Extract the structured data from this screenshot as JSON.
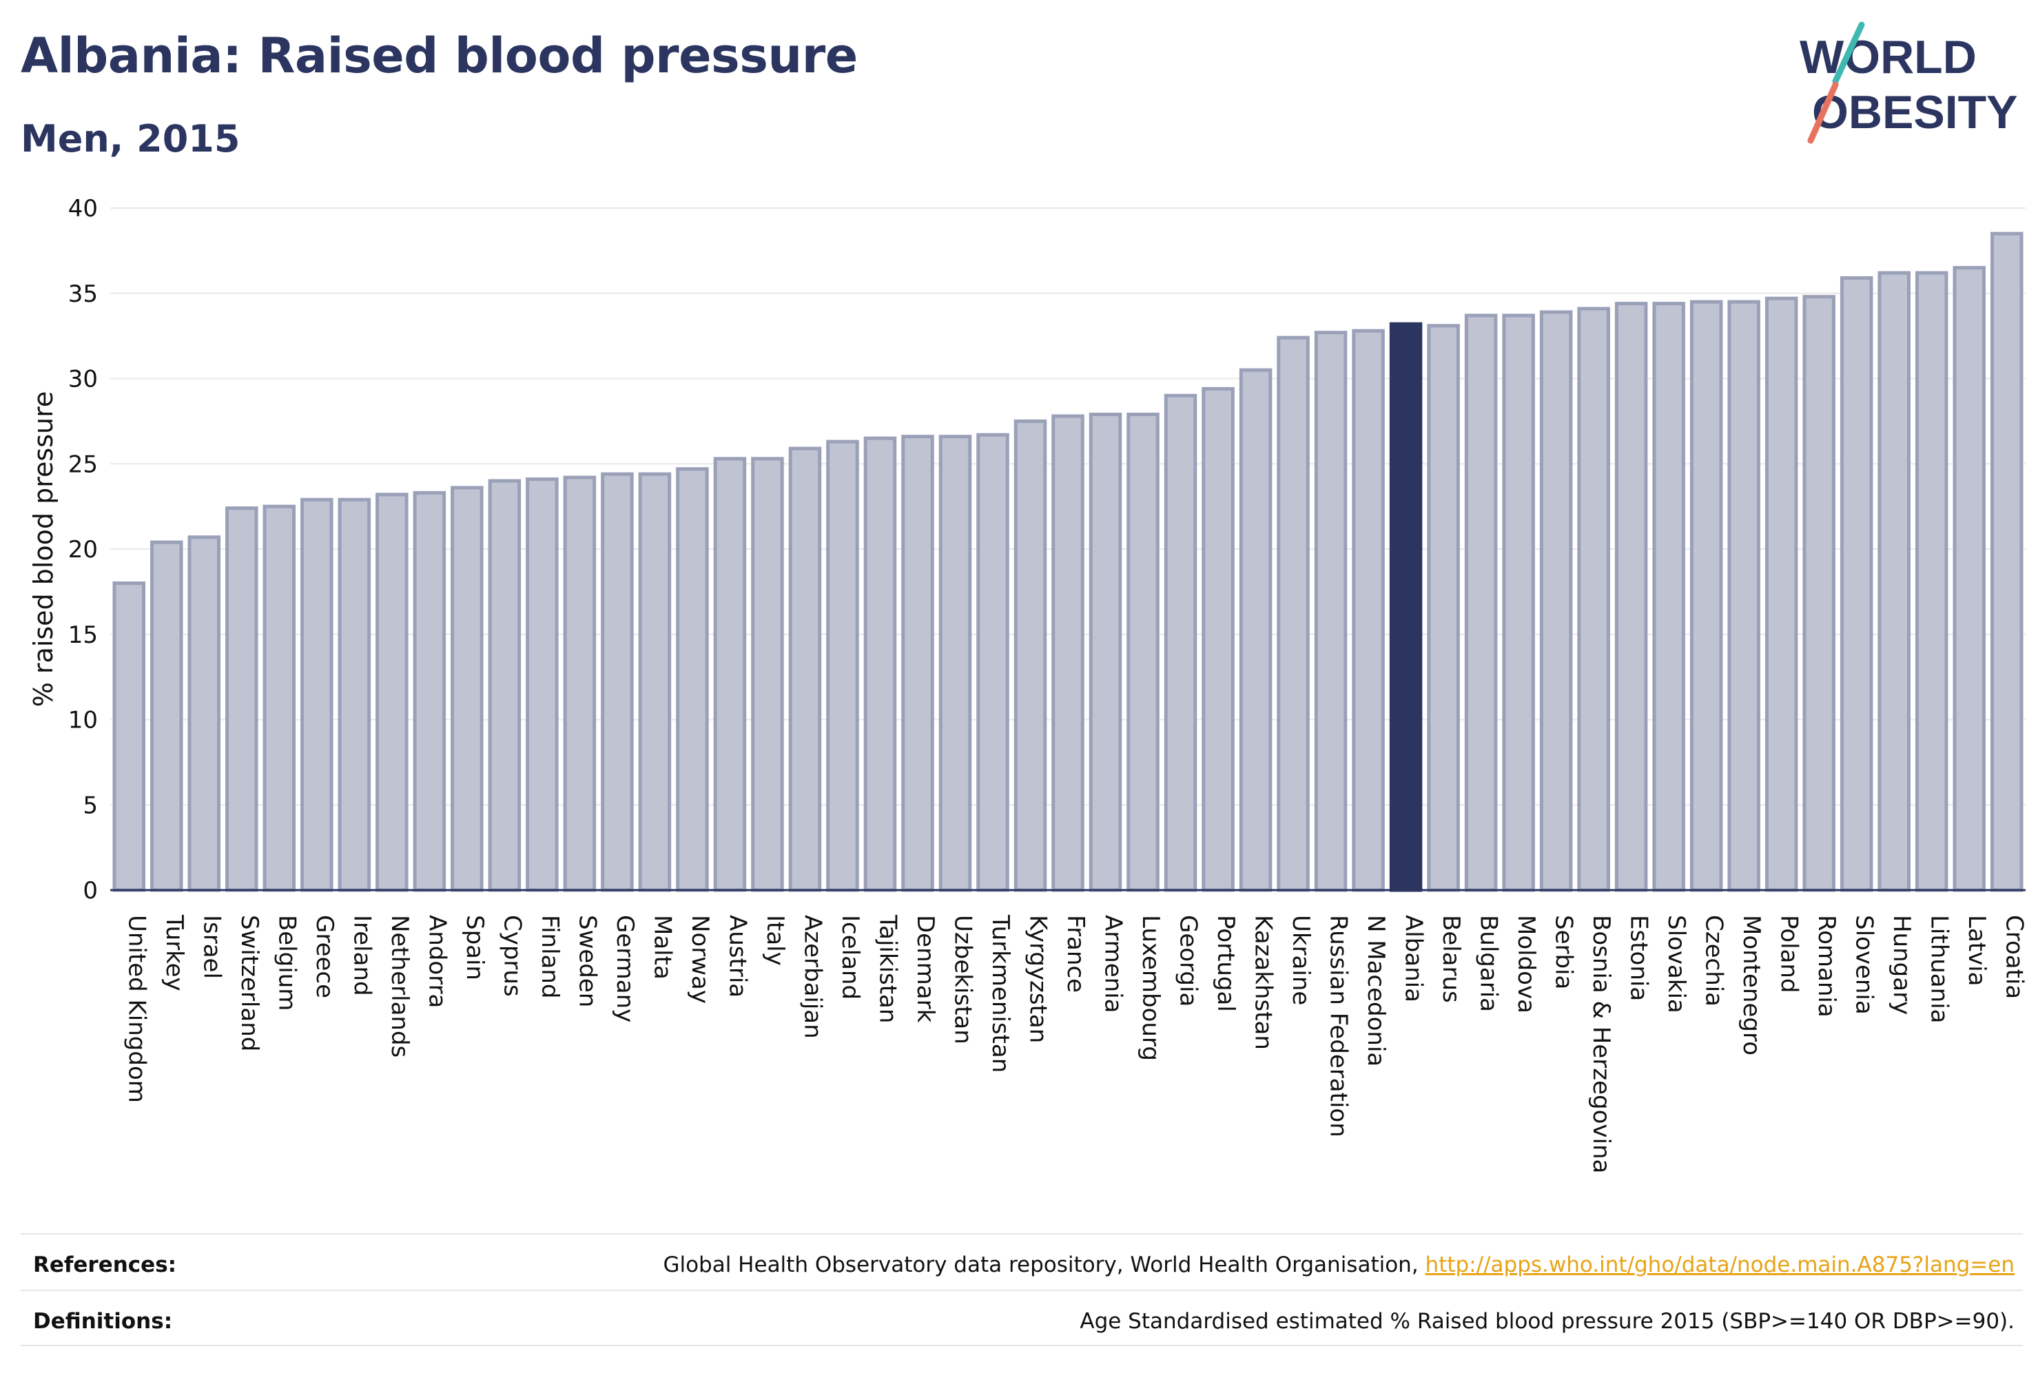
{
  "header": {
    "title": "Albania: Raised blood pressure",
    "subtitle": "Men, 2015",
    "logo": {
      "line1": "WORLD",
      "line2": "OBESITY"
    }
  },
  "colors": {
    "bar": "#bfc3d2",
    "bar_stroke": "#9aa0b8",
    "highlight": "#2b3560",
    "grid": "#e8e8e8",
    "logo_teal": "#3fb8b1",
    "logo_coral": "#e8735f"
  },
  "chart_data": {
    "type": "bar",
    "ylabel": "% raised blood pressure",
    "ylim": [
      0,
      40
    ],
    "yticks": [
      0,
      5,
      10,
      15,
      20,
      25,
      30,
      35,
      40
    ],
    "highlight": "Albania",
    "categories": [
      "United Kingdom",
      "Turkey",
      "Israel",
      "Switzerland",
      "Belgium",
      "Greece",
      "Ireland",
      "Netherlands",
      "Andorra",
      "Spain",
      "Cyprus",
      "Finland",
      "Sweden",
      "Germany",
      "Malta",
      "Norway",
      "Austria",
      "Italy",
      "Azerbaijan",
      "Iceland",
      "Tajikistan",
      "Denmark",
      "Uzbekistan",
      "Turkmenistan",
      "Kyrgyzstan",
      "France",
      "Armenia",
      "Luxembourg",
      "Georgia",
      "Portugal",
      "Kazakhstan",
      "Ukraine",
      "Russian Federation",
      "N Macedonia",
      "Albania",
      "Belarus",
      "Bulgaria",
      "Moldova",
      "Serbia",
      "Bosnia & Herzegovina",
      "Estonia",
      "Slovakia",
      "Czechia",
      "Montenegro",
      "Poland",
      "Romania",
      "Slovenia",
      "Hungary",
      "Lithuania",
      "Latvia",
      "Croatia"
    ],
    "values": [
      18.0,
      20.4,
      20.7,
      22.4,
      22.5,
      22.9,
      22.9,
      23.2,
      23.3,
      23.6,
      24.0,
      24.1,
      24.2,
      24.4,
      24.4,
      24.7,
      25.3,
      25.3,
      25.9,
      26.3,
      26.5,
      26.6,
      26.6,
      26.7,
      27.5,
      27.8,
      27.9,
      27.9,
      29.0,
      29.4,
      30.5,
      32.4,
      32.7,
      32.8,
      33.2,
      33.1,
      33.7,
      33.7,
      33.9,
      34.1,
      34.4,
      34.4,
      34.5,
      34.5,
      34.7,
      34.8,
      35.9,
      36.2,
      36.2,
      36.5,
      38.5
    ]
  },
  "footer": {
    "references_label": "References:",
    "references_text": "Global Health Observatory data repository, World Health Organisation, ",
    "references_link": "http://apps.who.int/gho/data/node.main.A875?lang=en",
    "definitions_label": "Definitions:",
    "definitions_text": "Age Standardised estimated % Raised blood pressure 2015 (SBP>=140 OR DBP>=90)."
  }
}
